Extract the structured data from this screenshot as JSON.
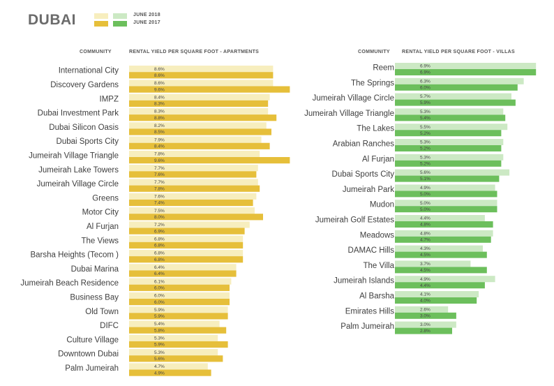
{
  "page": {
    "title": "DUBAI",
    "legend": [
      {
        "label": "JUNE 2018",
        "colors": [
          "#f7eebe",
          "#cce9c4"
        ]
      },
      {
        "label": "JUNE 2017",
        "colors": [
          "#e6bf3a",
          "#6cbf5c"
        ]
      }
    ],
    "header_community": "COMMUNITY",
    "header_apartments": "RENTAL YIELD PER SQUARE FOOT - APARTMENTS",
    "header_villas": "RENTAL YIELD PER SQUARE FOOT - VILLAS",
    "colors": {
      "apt_2018": "#f7eebe",
      "apt_2017": "#e6bf3a",
      "villa_2018": "#cce9c4",
      "villa_2017": "#6cbf5c"
    }
  },
  "chart_data": [
    {
      "type": "bar",
      "orientation": "horizontal",
      "title": "RENTAL YIELD PER SQUARE FOOT - APARTMENTS",
      "categories": [
        "International City",
        "Discovery Gardens",
        "IMPZ",
        "Dubai Investment Park",
        "Dubai Silicon Oasis",
        "Dubai Sports City",
        "Jumeirah Village Triangle",
        "Jumeirah Lake Towers",
        "Jumeirah Village Circle",
        "Greens",
        "Motor City",
        "Al Furjan",
        "The Views",
        "Barsha Heights (Tecom )",
        "Dubai Marina",
        "Jumeirah Beach Residence",
        "Business Bay",
        "Old Town",
        "DIFC",
        "Culture Village",
        "Downtown Dubai",
        "Palm Jumeirah"
      ],
      "series": [
        {
          "name": "JUNE 2018",
          "values": [
            8.6,
            8.6,
            8.4,
            8.3,
            8.2,
            7.9,
            7.8,
            7.7,
            7.7,
            7.6,
            7.5,
            7.2,
            6.8,
            6.8,
            6.4,
            6.1,
            6.0,
            5.9,
            5.4,
            5.3,
            5.3,
            4.7
          ],
          "labels": [
            "8.6%",
            "8.6%",
            "8.4%",
            "8.3%",
            "8.2%",
            "7.9%",
            "7.8%",
            "7.7%",
            "7.7%",
            "7.6%",
            "7.5%",
            "7.2%",
            "6.8%",
            "6.8%",
            "6.4%",
            "6.1%",
            "6.0%",
            "5.9%",
            "5.4%",
            "5.3%",
            "5.3%",
            "4.7%"
          ]
        },
        {
          "name": "JUNE 2017",
          "values": [
            8.6,
            9.6,
            8.3,
            8.8,
            8.5,
            8.4,
            9.6,
            7.6,
            7.8,
            7.4,
            8.0,
            6.9,
            6.8,
            6.8,
            6.4,
            6.0,
            6.0,
            5.9,
            5.8,
            5.9,
            5.6,
            4.9
          ],
          "labels": [
            "8.6%",
            "9.6%",
            "8.3%",
            "8.8%",
            "8.5%",
            "8.4%",
            "9.6%",
            "7.6%",
            "7.8%",
            "7.4%",
            "8.0%",
            "6.9%",
            "6.8%",
            "6.8%",
            "6.4%",
            "6.0%",
            "6.0%",
            "5.9%",
            "5.8%",
            "5.9%",
            "5.6%",
            "4.9%"
          ]
        }
      ]
    },
    {
      "type": "bar",
      "orientation": "horizontal",
      "title": "RENTAL YIELD PER SQUARE FOOT - VILLAS",
      "categories": [
        "Reem",
        "The Springs",
        "Jumeirah Village Circle",
        "Jumeirah Village Triangle",
        "The Lakes",
        "Arabian Ranches",
        "Al Furjan",
        "Dubai Sports City",
        "Jumeirah Park",
        "Mudon",
        "Jumeirah Golf Estates",
        "Meadows",
        "DAMAC Hills",
        "The Villa",
        "Jumeirah Islands",
        "Al Barsha",
        "Emirates Hills",
        "Palm Jumeirah"
      ],
      "series": [
        {
          "name": "JUNE 2018",
          "values": [
            6.9,
            6.3,
            5.7,
            5.3,
            5.5,
            5.3,
            5.3,
            5.6,
            4.9,
            5.0,
            4.4,
            4.8,
            4.3,
            3.7,
            4.9,
            4.1,
            2.6,
            3.0
          ],
          "labels": [
            "6.9%",
            "6.3%",
            "5.7%",
            "5.3%",
            "5.5%",
            "5.3%",
            "5.3%",
            "5.6%",
            "4.9%",
            "5.0%",
            "4.4%",
            "4.8%",
            "4.3%",
            "3.7%",
            "4.9%",
            "4.1%",
            "2.6%",
            "3.0%"
          ]
        },
        {
          "name": "JUNE 2017",
          "values": [
            6.9,
            6.0,
            5.9,
            5.4,
            5.2,
            5.2,
            5.2,
            5.1,
            5.0,
            5.0,
            4.8,
            4.7,
            4.5,
            4.5,
            4.4,
            4.0,
            3.0,
            2.8
          ],
          "labels": [
            "6.9%",
            "6.0%",
            "5.9%",
            "5.4%",
            "5.2%",
            "5.2%",
            "5.2%",
            "5.1%",
            "5.0%",
            "5.0%",
            "4.8%",
            "4.7%",
            "4.5%",
            "4.5%",
            "4.4%",
            "4.0%",
            "3.0%",
            "2.8%"
          ]
        }
      ]
    }
  ]
}
